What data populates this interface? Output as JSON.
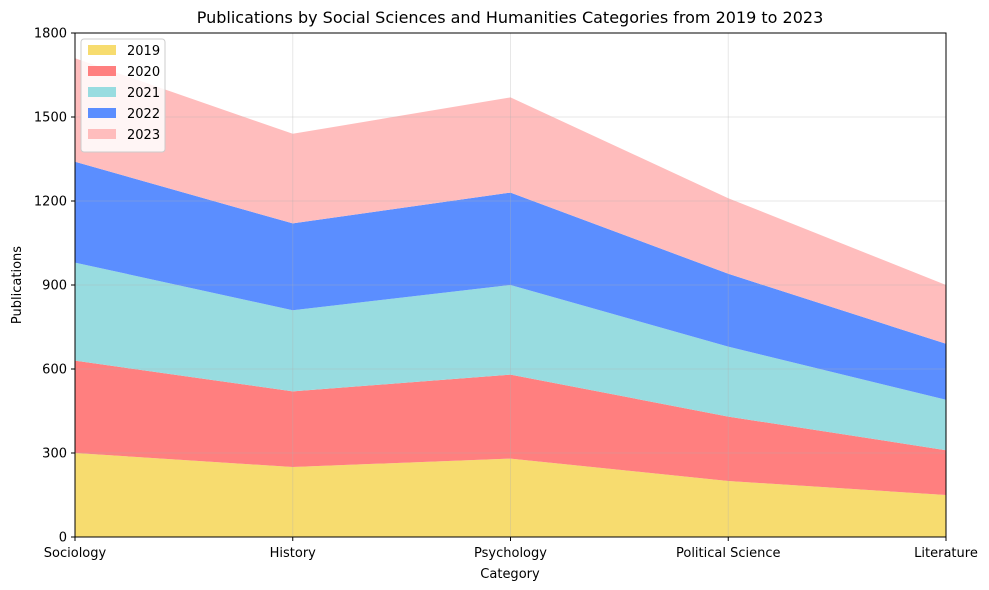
{
  "chart_data": {
    "type": "area",
    "stacked": true,
    "title": "Publications by Social Sciences and Humanities Categories from 2019 to 2023",
    "xlabel": "Category",
    "ylabel": "Publications",
    "categories": [
      "Sociology",
      "History",
      "Psychology",
      "Political Science",
      "Literature"
    ],
    "ylim": [
      0,
      1800
    ],
    "yticks": [
      0,
      300,
      600,
      900,
      1200,
      1500,
      1800
    ],
    "grid": true,
    "legend_position": "upper-left",
    "series": [
      {
        "name": "2019",
        "values": [
          300,
          250,
          280,
          200,
          150
        ],
        "color": "#f7dc6f"
      },
      {
        "name": "2020",
        "values": [
          330,
          270,
          300,
          230,
          160
        ],
        "color": "#ff7f7f"
      },
      {
        "name": "2021",
        "values": [
          350,
          290,
          320,
          250,
          180
        ],
        "color": "#98dce0"
      },
      {
        "name": "2022",
        "values": [
          360,
          310,
          330,
          260,
          200
        ],
        "color": "#5b8eff"
      },
      {
        "name": "2023",
        "values": [
          370,
          320,
          340,
          270,
          210
        ],
        "color": "#ffbdbd"
      }
    ]
  }
}
